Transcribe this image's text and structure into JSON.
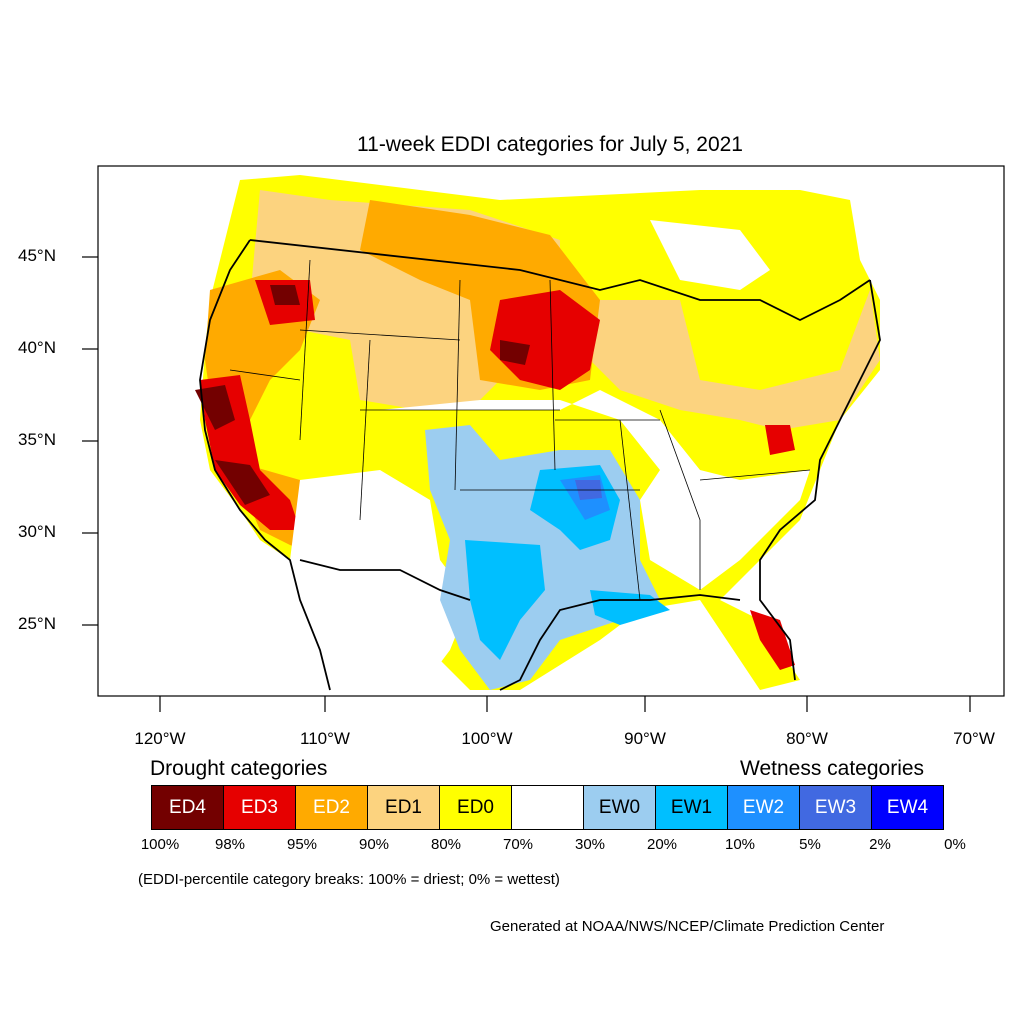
{
  "title": "11-week EDDI categories for July 5, 2021",
  "lat_labels": [
    "45°N",
    "40°N",
    "35°N",
    "30°N",
    "25°N"
  ],
  "lon_labels": [
    "120°W",
    "110°W",
    "100°W",
    "90°W",
    "80°W",
    "70°W"
  ],
  "legend": {
    "drought_heading": "Drought categories",
    "wetness_heading": "Wetness categories",
    "categories": [
      {
        "label": "ED4",
        "color": "#730000",
        "text_color": "#ffffff"
      },
      {
        "label": "ED3",
        "color": "#e60000",
        "text_color": "#ffffff"
      },
      {
        "label": "ED2",
        "color": "#ffaa00",
        "text_color": "#ffffff"
      },
      {
        "label": "ED1",
        "color": "#fcd37f",
        "text_color": "#000000"
      },
      {
        "label": "ED0",
        "color": "#ffff00",
        "text_color": "#000000"
      },
      {
        "label": "",
        "color": "#ffffff",
        "text_color": "#000000"
      },
      {
        "label": "EW0",
        "color": "#9ccdf0",
        "text_color": "#000000"
      },
      {
        "label": "EW1",
        "color": "#00bfff",
        "text_color": "#000000"
      },
      {
        "label": "EW2",
        "color": "#1e90ff",
        "text_color": "#ffffff"
      },
      {
        "label": "EW3",
        "color": "#4169e1",
        "text_color": "#ffffff"
      },
      {
        "label": "EW4",
        "color": "#0000ff",
        "text_color": "#ffffff"
      }
    ],
    "breaks": [
      "100%",
      "98%",
      "95%",
      "90%",
      "80%",
      "70%",
      "30%",
      "20%",
      "10%",
      "5%",
      "2%",
      "0%"
    ]
  },
  "note": "(EDDI-percentile category breaks: 100% = driest; 0% = wettest)",
  "credit": "Generated at NOAA/NWS/NCEP/Climate Prediction Center"
}
